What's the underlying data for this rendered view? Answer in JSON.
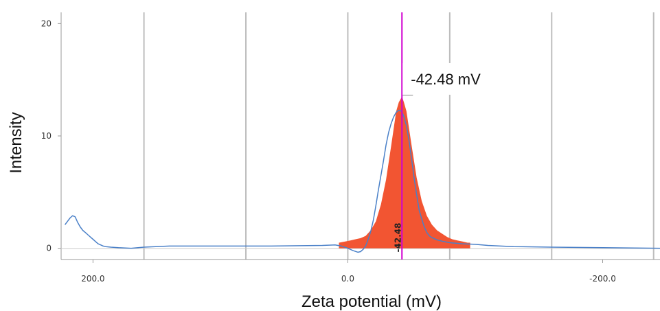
{
  "chart_data": {
    "type": "line",
    "xlabel": "Zeta potential (mV)",
    "ylabel": "Intensity",
    "x_reversed": true,
    "xlim": [
      225,
      -245
    ],
    "ylim": [
      -1,
      21
    ],
    "x_ticks": [
      {
        "value": 200,
        "label": "200.0"
      },
      {
        "value": 0,
        "label": "0.0"
      },
      {
        "value": -200,
        "label": "-200.0"
      }
    ],
    "x_gridlines": [
      160,
      80,
      0,
      -80,
      -160,
      -240
    ],
    "y_ticks": [
      {
        "value": 0,
        "label": "0"
      },
      {
        "value": 10,
        "label": "10"
      },
      {
        "value": 20,
        "label": "20"
      }
    ],
    "grid": "vertical",
    "peak": {
      "value": -42.48,
      "label": "-42.48 mV",
      "rotated_label": "-42.48",
      "color": "#d000d0",
      "fill_color": "#f25532",
      "fill_x": [
        7,
        2,
        -2,
        -6,
        -10,
        -14,
        -18,
        -22,
        -26,
        -30,
        -34,
        -38,
        -40,
        -42.48,
        -44,
        -46,
        -50,
        -54,
        -58,
        -62,
        -66,
        -70,
        -74,
        -78,
        -82,
        -86,
        -90,
        -94,
        -96
      ],
      "fill_y": [
        0.5,
        0.6,
        0.7,
        0.8,
        0.9,
        1.1,
        1.6,
        2.4,
        3.9,
        6.1,
        9.1,
        12.2,
        13.0,
        13.5,
        13.0,
        12.2,
        9.2,
        6.3,
        4.2,
        2.9,
        2.1,
        1.6,
        1.3,
        1.0,
        0.8,
        0.7,
        0.6,
        0.5,
        0.5
      ]
    },
    "series": [
      {
        "color": "#4a80c8",
        "x": [
          222,
          220,
          218,
          216,
          214,
          212,
          210,
          208,
          206,
          204,
          202,
          200,
          198,
          196,
          194,
          192,
          190,
          186,
          180,
          170,
          160,
          140,
          100,
          60,
          20,
          10,
          5,
          0,
          -4,
          -8,
          -10,
          -12,
          -14,
          -16,
          -18,
          -20,
          -22,
          -24,
          -26,
          -28,
          -30,
          -32,
          -34,
          -36,
          -38,
          -40,
          -42,
          -43,
          -44,
          -46,
          -48,
          -50,
          -52,
          -54,
          -56,
          -58,
          -60,
          -62,
          -64,
          -66,
          -68,
          -70,
          -75,
          -80,
          -90,
          -100,
          -110,
          -130,
          -160,
          -200,
          -245
        ],
        "y": [
          2.1,
          2.4,
          2.7,
          2.9,
          2.8,
          2.3,
          1.9,
          1.6,
          1.4,
          1.2,
          1.0,
          0.8,
          0.6,
          0.4,
          0.3,
          0.2,
          0.15,
          0.1,
          0.05,
          0.0,
          0.1,
          0.2,
          0.2,
          0.2,
          0.25,
          0.3,
          0.2,
          0.0,
          -0.2,
          -0.35,
          -0.3,
          -0.1,
          0.2,
          0.8,
          1.5,
          2.5,
          3.8,
          5.2,
          6.5,
          7.8,
          9.2,
          10.3,
          11.1,
          11.7,
          12.1,
          12.3,
          12.2,
          12.0,
          11.7,
          10.9,
          9.6,
          8.0,
          6.3,
          4.8,
          3.4,
          2.6,
          1.9,
          1.4,
          1.1,
          0.95,
          0.85,
          0.75,
          0.6,
          0.5,
          0.4,
          0.35,
          0.25,
          0.15,
          0.1,
          0.05,
          0.0
        ]
      }
    ]
  }
}
